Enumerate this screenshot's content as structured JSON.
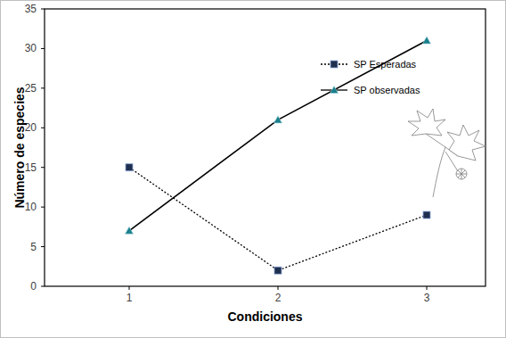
{
  "chart_data": {
    "type": "line",
    "x_label": "Condiciones",
    "y_label": "Número de especies",
    "categories": [
      "1",
      "2",
      "3"
    ],
    "series": [
      {
        "name": "SP Esperadas",
        "color": "#1f2f4f",
        "marker": "square",
        "line_style": "dotted",
        "values": [
          15,
          2,
          9
        ]
      },
      {
        "name": "SP observadas",
        "color": "#1b7f8c",
        "marker": "triangle",
        "line_style": "solid",
        "values": [
          7,
          21,
          31
        ]
      }
    ],
    "ylim": [
      0,
      35
    ],
    "yticks": [
      0,
      5,
      10,
      15,
      20,
      25,
      30,
      35
    ],
    "grid": false,
    "legend": "upper right"
  }
}
